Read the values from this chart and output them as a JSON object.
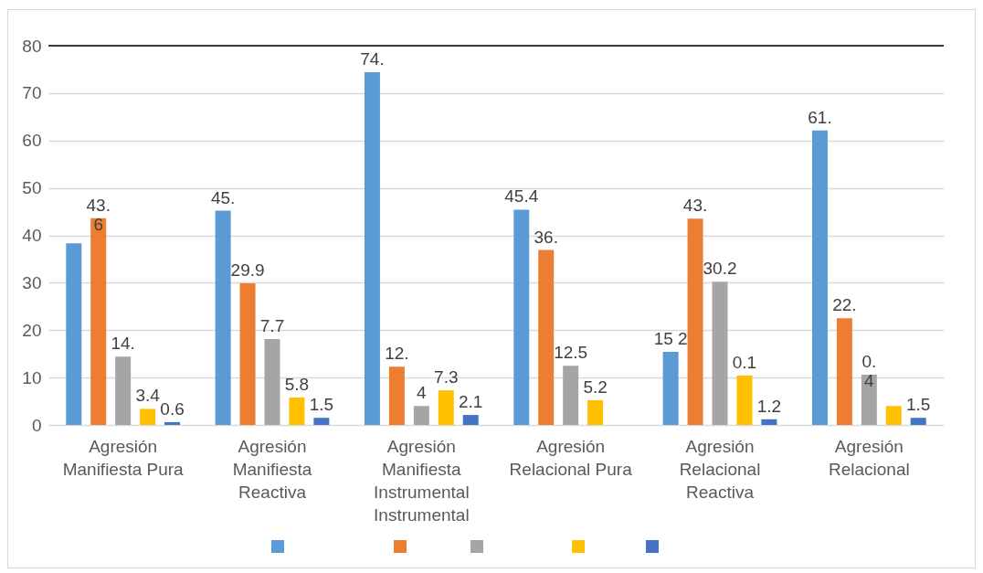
{
  "chart_data": {
    "type": "bar",
    "categories": [
      "Agresión Manifiesta Pura",
      "Agresión Manifiesta Reactiva",
      "Agresión Manifiesta Instrumental Instrumental",
      "Agresión Relacional Pura",
      "Agresión Relacional Reactiva",
      "Agresión Relacional"
    ],
    "series": [
      {
        "color": "#5b9bd5",
        "values": [
          38.3,
          45.2,
          74.4,
          45.4,
          15.4,
          62.1
        ],
        "value_labels": [
          null,
          "45.",
          "74.",
          "45.4",
          "15 2",
          null
        ]
      },
      {
        "color": "#ed7d31",
        "values": [
          43.6,
          29.9,
          12.3,
          36.9,
          43.5,
          22.5
        ],
        "value_labels": [
          null,
          "29.9",
          "12.",
          null,
          "43.",
          "22."
        ]
      },
      {
        "color": "#a5a5a5",
        "values": [
          14.4,
          18.1,
          4.0,
          12.5,
          30.2,
          10.6
        ],
        "value_labels": [
          "14.",
          null,
          "4",
          "12.5",
          "30.2",
          null
        ]
      },
      {
        "color": "#ffc000",
        "values": [
          3.4,
          5.8,
          7.3,
          5.2,
          10.4,
          4.0
        ],
        "value_labels": [
          "3.4",
          "5.8",
          "7.3",
          "5.2",
          null,
          null
        ]
      },
      {
        "color": "#4472c4",
        "values": [
          0.6,
          1.5,
          2.1,
          null,
          1.2,
          1.5
        ],
        "value_labels": [
          "0.6",
          "1.5",
          "2.1",
          null,
          "1.2",
          "1.5"
        ]
      }
    ],
    "annotations": [
      "43.\n6",
      {
        "text": "7.7",
        "x": "Agresión Manifiesta Reactiva",
        "y": 18.1
      },
      "36.",
      "0.1",
      "61.",
      {
        "text": "0.\n4",
        "x": "Agresión Relacional",
        "y": 10.6
      }
    ],
    "ylim": [
      0,
      80
    ],
    "yticks": [
      0,
      10,
      20,
      30,
      40,
      50,
      60,
      70,
      80
    ],
    "ref_lines": [
      {
        "axis": "y",
        "value": 80,
        "color": "#000000"
      }
    ],
    "grid": "y"
  }
}
